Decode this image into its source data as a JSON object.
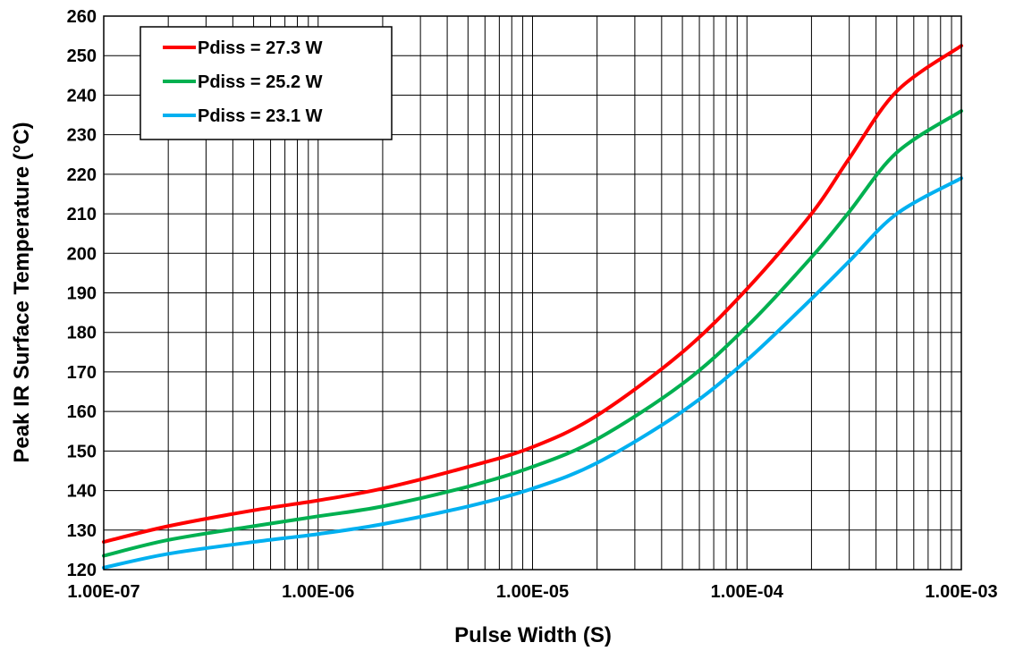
{
  "chart_data": {
    "type": "line",
    "title": "",
    "xlabel": "Pulse Width (S)",
    "ylabel": "Peak IR Surface Temperature (°C)",
    "x_scale": "log",
    "xlim": [
      1e-07,
      0.001
    ],
    "ylim": [
      120,
      260
    ],
    "x_tick_values": [
      1e-07,
      1e-06,
      1e-05,
      0.0001,
      0.001
    ],
    "x_tick_labels": [
      "1.00E-07",
      "1.00E-06",
      "1.00E-05",
      "1.00E-04",
      "1.00E-03"
    ],
    "y_ticks": [
      120,
      130,
      140,
      150,
      160,
      170,
      180,
      190,
      200,
      210,
      220,
      230,
      240,
      250,
      260
    ],
    "grid": true,
    "legend_position": "top-left",
    "series": [
      {
        "name": "Pdiss = 27.3 W",
        "color": "#ff0000",
        "x": [
          1e-07,
          2e-07,
          5e-07,
          1e-06,
          2e-06,
          5e-06,
          1e-05,
          2e-05,
          5e-05,
          0.0001,
          0.0002,
          0.0003,
          0.0005,
          0.001
        ],
        "y": [
          127,
          131,
          135,
          137.5,
          140.5,
          146,
          151,
          159,
          175,
          191,
          210,
          224,
          241,
          252.5
        ]
      },
      {
        "name": "Pdiss = 25.2 W",
        "color": "#00b050",
        "x": [
          1e-07,
          2e-07,
          5e-07,
          1e-06,
          2e-06,
          5e-06,
          1e-05,
          2e-05,
          5e-05,
          0.0001,
          0.0002,
          0.0003,
          0.0005,
          0.001
        ],
        "y": [
          123.5,
          127.5,
          131,
          133.5,
          136,
          141,
          146,
          153,
          167,
          181.5,
          199,
          210.5,
          225.5,
          236
        ]
      },
      {
        "name": "Pdiss = 23.1 W",
        "color": "#00b0f0",
        "x": [
          1e-07,
          2e-07,
          5e-07,
          1e-06,
          2e-06,
          5e-06,
          1e-05,
          2e-05,
          5e-05,
          0.0001,
          0.0002,
          0.0003,
          0.0005,
          0.001
        ],
        "y": [
          120.5,
          124,
          127,
          129,
          131.5,
          136,
          140.5,
          147,
          160,
          173,
          188.5,
          198,
          210,
          219
        ]
      }
    ]
  }
}
